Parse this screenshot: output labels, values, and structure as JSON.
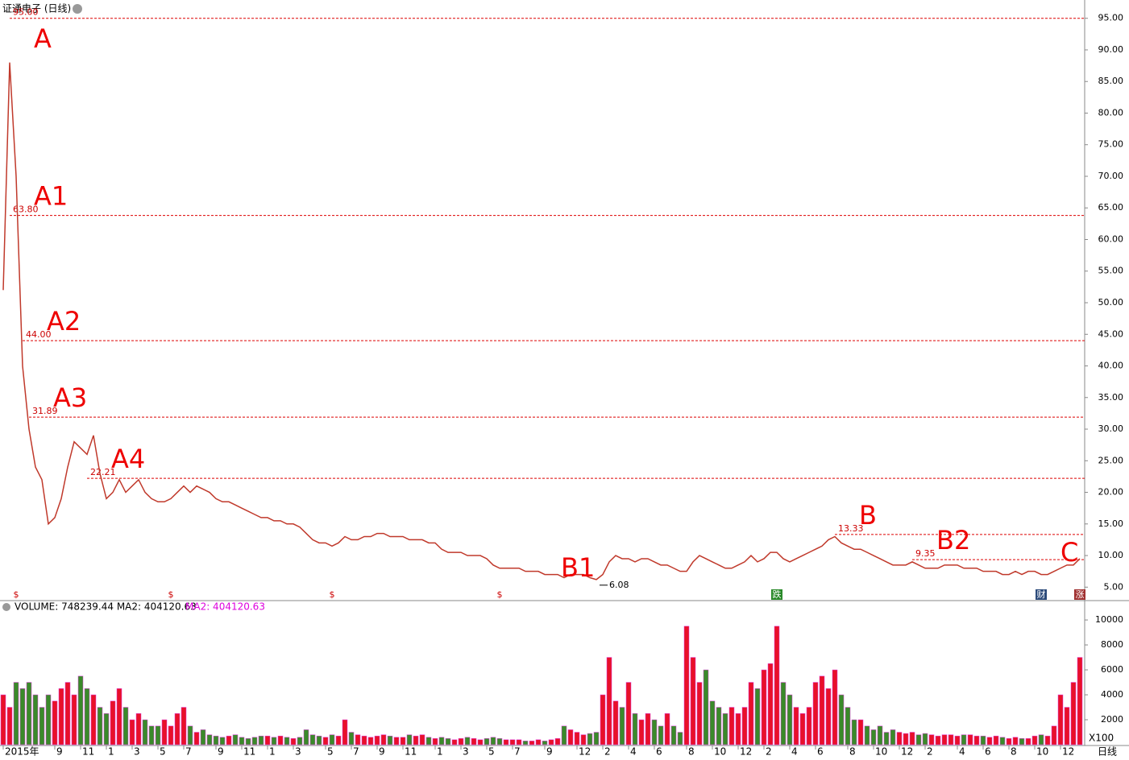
{
  "chart_data": {
    "type": "line",
    "title": "证通电子 (日线)",
    "period": "日线",
    "categories": [
      "2015年",
      null,
      null,
      null,
      null,
      null,
      null,
      null,
      "9",
      null,
      null,
      null,
      "11",
      null,
      null,
      null,
      "1",
      null,
      null,
      null,
      "3",
      null,
      null,
      null,
      "5",
      null,
      null,
      null,
      "7",
      null,
      null,
      null,
      null,
      "9",
      null,
      null,
      null,
      "11",
      null,
      null,
      null,
      "1",
      null,
      null,
      null,
      "3",
      null,
      null,
      null,
      null,
      "5",
      null,
      null,
      null,
      "7",
      null,
      null,
      null,
      "9",
      null,
      null,
      null,
      "11",
      null,
      null,
      null,
      null,
      "1",
      null,
      null,
      null,
      "3",
      null,
      null,
      null,
      "5",
      null,
      null,
      null,
      "7",
      null,
      null,
      null,
      null,
      "9",
      null,
      null,
      null,
      null,
      "12",
      null,
      null,
      null,
      "2",
      null,
      null,
      null,
      "4",
      null,
      null,
      null,
      "6",
      null,
      null,
      null,
      null,
      "8",
      null,
      null,
      null,
      "10",
      null,
      null,
      null,
      "12",
      null,
      null,
      null,
      "2",
      null,
      null,
      null,
      "4",
      null,
      null,
      null,
      "6",
      null,
      null,
      null,
      null,
      "8",
      null,
      null,
      null,
      "10",
      null,
      null,
      null,
      "12",
      null,
      null,
      null,
      "2",
      null,
      null,
      null,
      null,
      "4",
      null,
      null,
      null,
      "6",
      null,
      null,
      null,
      "8",
      null,
      null,
      null,
      "10",
      null,
      null,
      null,
      "12",
      null,
      null,
      null
    ],
    "values": [
      52,
      88,
      70,
      40,
      30,
      24,
      22,
      15,
      16,
      19,
      24,
      28,
      27,
      26,
      29,
      23,
      19,
      20,
      22,
      20,
      21,
      22,
      20,
      19,
      18.5,
      18.5,
      19,
      20,
      21,
      20,
      21,
      20.5,
      20,
      19,
      18.5,
      18.5,
      18,
      17.5,
      17,
      16.5,
      16,
      16,
      15.5,
      15.5,
      15,
      15,
      14.5,
      13.5,
      12.5,
      12,
      12,
      11.5,
      12,
      13,
      12.5,
      12.5,
      13,
      13,
      13.5,
      13.5,
      13,
      13,
      13,
      12.5,
      12.5,
      12.5,
      12,
      12,
      11,
      10.5,
      10.5,
      10.5,
      10,
      10,
      10,
      9.5,
      8.5,
      8,
      8,
      8,
      8,
      7.5,
      7.5,
      7.5,
      7,
      7,
      7,
      6.5,
      7,
      7,
      7,
      6.5,
      6.2,
      7,
      9,
      10,
      9.5,
      9.5,
      9,
      9.5,
      9.5,
      9,
      8.5,
      8.5,
      8,
      7.5,
      7.5,
      9,
      10,
      9.5,
      9,
      8.5,
      8,
      8,
      8.5,
      9,
      10,
      9,
      9.5,
      10.5,
      10.5,
      9.5,
      9,
      9.5,
      10,
      10.5,
      11,
      11.5,
      12.5,
      13,
      12,
      11.5,
      11,
      11,
      10.5,
      10,
      9.5,
      9,
      8.5,
      8.5,
      8.5,
      9,
      8.5,
      8,
      8,
      8,
      8.5,
      8.5,
      8.5,
      8,
      8,
      8,
      7.5,
      7.5,
      7.5,
      7,
      7,
      7.5,
      7,
      7.5,
      7.5,
      7,
      7,
      7.5,
      8,
      8.5,
      8.5,
      9.5
    ],
    "color": "#c0392b",
    "ylim": [
      3,
      95.6
    ],
    "yticks": [
      {
        "value": 5,
        "label": "5.00"
      },
      {
        "value": 10,
        "label": "10.00"
      },
      {
        "value": 15,
        "label": "15.00"
      },
      {
        "value": 20,
        "label": "20.00"
      },
      {
        "value": 25,
        "label": "25.00"
      },
      {
        "value": 30,
        "label": "30.00"
      },
      {
        "value": 35,
        "label": "35.00"
      },
      {
        "value": 40,
        "label": "40.00"
      },
      {
        "value": 45,
        "label": "45.00"
      },
      {
        "value": 50,
        "label": "50.00"
      },
      {
        "value": 55,
        "label": "55.00"
      },
      {
        "value": 60,
        "label": "60.00"
      },
      {
        "value": 65,
        "label": "65.00"
      },
      {
        "value": 70,
        "label": "70.00"
      },
      {
        "value": 75,
        "label": "75.00"
      },
      {
        "value": 80,
        "label": "80.00"
      },
      {
        "value": 85,
        "label": "85.00"
      },
      {
        "value": 90,
        "label": "90.00"
      },
      {
        "value": 95,
        "label": "95.00"
      }
    ],
    "levels": [
      {
        "wave": "A",
        "value": 95,
        "label": "95.00",
        "at": 1
      },
      {
        "wave": "A1",
        "value": 63.8,
        "label": "63.80",
        "at": 1
      },
      {
        "wave": "A2",
        "value": 44,
        "label": "44.00",
        "at": 3
      },
      {
        "wave": "A3",
        "value": 31.89,
        "label": "31.89",
        "at": 4
      },
      {
        "wave": "A4",
        "value": 22.21,
        "label": "22.21",
        "at": 13
      },
      {
        "wave": "B",
        "value": 13.33,
        "label": "13.33",
        "at": 129
      },
      {
        "wave": "B2",
        "value": 9.35,
        "label": "9.35",
        "at": 141
      }
    ],
    "points": [
      {
        "wave": "B1",
        "value": 6.08,
        "label": "6.08",
        "at": 92
      },
      {
        "wave": "C",
        "at": 166
      }
    ],
    "events": [
      {
        "label": "$",
        "at": 2
      },
      {
        "label": "$",
        "at": 26
      },
      {
        "label": "$",
        "at": 51
      },
      {
        "label": "$",
        "at": 77
      },
      {
        "label": "跌",
        "at": 120
      },
      {
        "label": "财",
        "at": 161
      },
      {
        "label": "涨",
        "at": 167
      }
    ],
    "volume": {
      "legend": "VOLUME: 748239.44  MA2: 404120.63",
      "ma_legend": "MA2: 404120.63",
      "unit": "X100",
      "values": [
        4000,
        3000,
        5000,
        4500,
        5000,
        4000,
        3000,
        4000,
        3500,
        4500,
        5000,
        4000,
        5500,
        4500,
        4000,
        3000,
        2500,
        3500,
        4500,
        3000,
        2000,
        2500,
        2000,
        1500,
        1500,
        2000,
        1500,
        2500,
        3000,
        1500,
        1000,
        1200,
        800,
        700,
        600,
        700,
        800,
        600,
        500,
        600,
        700,
        700,
        600,
        700,
        600,
        500,
        600,
        1200,
        800,
        700,
        600,
        800,
        700,
        2000,
        1000,
        800,
        700,
        600,
        700,
        800,
        700,
        600,
        600,
        800,
        700,
        800,
        600,
        500,
        600,
        500,
        400,
        500,
        600,
        500,
        400,
        500,
        600,
        500,
        400,
        400,
        400,
        300,
        300,
        400,
        300,
        400,
        500,
        1500,
        1200,
        1000,
        800,
        900,
        1000,
        4000,
        7000,
        3500,
        3000,
        5000,
        2500,
        2000,
        2500,
        2000,
        1500,
        2500,
        1500,
        1000,
        9500,
        7000,
        5000,
        6000,
        3500,
        3000,
        2500,
        3000,
        2500,
        3000,
        5000,
        4500,
        6000,
        6500,
        9500,
        5000,
        4000,
        3000,
        2500,
        3000,
        5000,
        5500,
        4500,
        6000,
        4000,
        3000,
        2000,
        2000,
        1500,
        1200,
        1500,
        1000,
        1200,
        1000,
        900,
        1000,
        800,
        900,
        800,
        700,
        800,
        800,
        700,
        800,
        800,
        700,
        700,
        600,
        700,
        600,
        500,
        600,
        500,
        500,
        700,
        800,
        700,
        1500,
        4000,
        3000,
        5000,
        7000
      ],
      "ylim": [
        0,
        10520
      ],
      "yticks": [
        2000,
        4000,
        6000,
        8000,
        10000
      ]
    }
  }
}
